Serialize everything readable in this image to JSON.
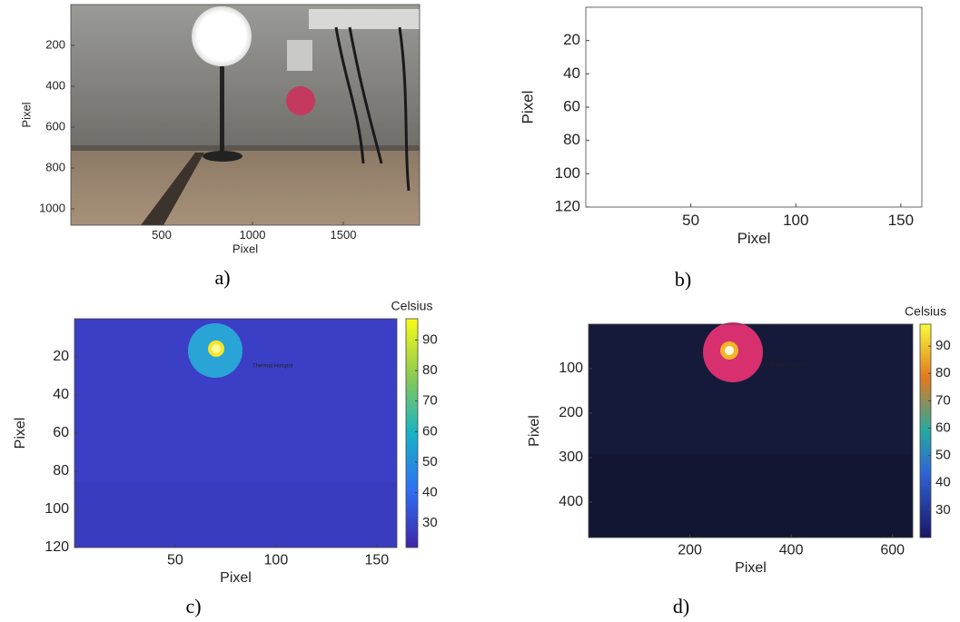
{
  "chart_data": [
    {
      "type": "image",
      "caption": "a)",
      "xlabel": "Pixel",
      "ylabel": "Pixel",
      "xlim": [
        0,
        1920
      ],
      "ylim": [
        0,
        1080
      ],
      "xticks": [
        500,
        1000,
        1500
      ],
      "yticks": [
        200,
        400,
        600,
        800,
        1000
      ]
    },
    {
      "type": "image",
      "caption": "b)",
      "xlabel": "Pixel",
      "ylabel": "Pixel",
      "xlim": [
        0,
        160
      ],
      "ylim": [
        0,
        120
      ],
      "xticks": [
        50,
        100,
        150
      ],
      "yticks": [
        20,
        40,
        60,
        80,
        100,
        120
      ]
    },
    {
      "type": "image",
      "caption": "c)",
      "xlabel": "Pixel",
      "ylabel": "Pixel",
      "annotation": "Thermal Hotspot",
      "xlim": [
        0,
        160
      ],
      "ylim": [
        0,
        120
      ],
      "xticks": [
        50,
        100,
        150
      ],
      "yticks": [
        20,
        40,
        60,
        80,
        100,
        120
      ],
      "colorbar": {
        "title": "Celsius",
        "colormap": "viridis",
        "lim": [
          22,
          97
        ],
        "ticks": [
          30,
          40,
          50,
          60,
          70,
          80,
          90
        ]
      }
    },
    {
      "type": "image",
      "caption": "d)",
      "xlabel": "Pixel",
      "ylabel": "Pixel",
      "annotation": "Thermal Hotspot",
      "xlim": [
        0,
        640
      ],
      "ylim": [
        0,
        480
      ],
      "xticks": [
        200,
        400,
        600
      ],
      "yticks": [
        100,
        200,
        300,
        400
      ],
      "colorbar": {
        "title": "Celsius",
        "colormap": "plasma",
        "lim": [
          20,
          98
        ],
        "ticks": [
          30,
          40,
          50,
          60,
          70,
          80,
          90
        ]
      }
    }
  ]
}
